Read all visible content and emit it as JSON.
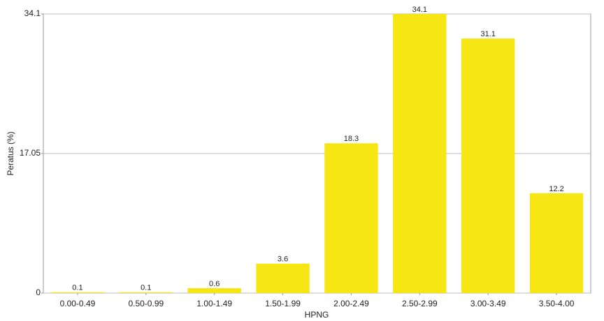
{
  "chart_data": {
    "type": "bar",
    "x_label": "HPNG",
    "y_label": "Peratus (%)",
    "categories": [
      "0.00-0.49",
      "0.50-0.99",
      "1.00-1.49",
      "1.50-1.99",
      "2.00-2.49",
      "2.50-2.99",
      "3.00-3.49",
      "3.50-4.00"
    ],
    "values": [
      0.1,
      0.1,
      0.6,
      3.6,
      18.3,
      34.1,
      31.1,
      12.2
    ],
    "color": "#f5e614",
    "ylim": [
      0,
      34.1
    ],
    "yticks": [
      0,
      17.05,
      34.1
    ],
    "grid": true
  }
}
